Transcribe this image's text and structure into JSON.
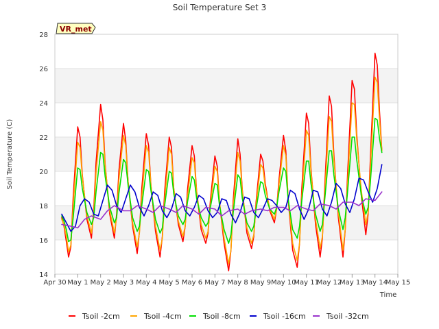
{
  "chart_data": {
    "type": "line",
    "title": "Soil Temperature Set 3",
    "xlabel": "Time",
    "ylabel": "Soil Temperature (C)",
    "tag_label": "VR_met",
    "ylim": [
      14,
      28
    ],
    "xlim": [
      0,
      15
    ],
    "y_ticks": [
      14,
      16,
      18,
      20,
      22,
      24,
      26,
      28
    ],
    "x_ticks": [
      0,
      1,
      2,
      3,
      4,
      5,
      6,
      7,
      8,
      9,
      10,
      11,
      12,
      13,
      14,
      15
    ],
    "x_tick_labels": [
      "Apr 30",
      "May 1",
      "May 2",
      "May 3",
      "May 4",
      "May 5",
      "May 6",
      "May 7",
      "May 8",
      "May 9",
      "May 10",
      "May 11",
      "May 12",
      "May 13",
      "May 14",
      "May 15"
    ],
    "background_bands": "alternating light grey",
    "grid": true,
    "legend_position": "bottom",
    "series": [
      {
        "name": "Tsoil -2cm",
        "color": "#ff0000",
        "x": [
          0.3,
          0.4,
          0.5,
          0.6,
          0.7,
          0.8,
          1.0,
          1.1,
          1.2,
          1.4,
          1.6,
          1.7,
          1.8,
          2.0,
          2.1,
          2.2,
          2.4,
          2.6,
          2.7,
          2.8,
          3.0,
          3.1,
          3.2,
          3.4,
          3.6,
          3.7,
          3.8,
          4.0,
          4.1,
          4.2,
          4.4,
          4.6,
          4.7,
          4.8,
          5.0,
          5.1,
          5.2,
          5.4,
          5.6,
          5.7,
          5.8,
          6.0,
          6.1,
          6.2,
          6.4,
          6.6,
          6.7,
          6.8,
          7.0,
          7.1,
          7.2,
          7.4,
          7.6,
          7.7,
          7.8,
          8.0,
          8.1,
          8.2,
          8.4,
          8.6,
          8.7,
          8.8,
          9.0,
          9.1,
          9.2,
          9.4,
          9.6,
          9.7,
          9.8,
          10.0,
          10.1,
          10.2,
          10.4,
          10.6,
          10.7,
          10.8,
          11.0,
          11.1,
          11.2,
          11.4,
          11.6,
          11.7,
          11.8,
          12.0,
          12.1,
          12.2,
          12.4,
          12.6,
          12.7,
          12.8,
          13.0,
          13.1,
          13.2,
          13.4,
          13.6,
          13.7,
          13.8,
          14.0,
          14.1,
          14.2,
          14.3
        ],
        "y": [
          17.3,
          16.8,
          15.9,
          15.0,
          15.6,
          18.5,
          22.6,
          22.0,
          19.8,
          17.2,
          16.1,
          17.8,
          20.5,
          23.9,
          23.0,
          20.4,
          17.5,
          16.1,
          17.5,
          20.0,
          22.8,
          21.8,
          19.4,
          16.8,
          15.2,
          16.5,
          19.0,
          22.2,
          21.5,
          19.2,
          16.5,
          15.0,
          16.2,
          18.8,
          22.0,
          21.4,
          19.0,
          16.9,
          15.9,
          16.8,
          18.9,
          21.5,
          20.9,
          18.8,
          16.6,
          15.8,
          16.4,
          18.3,
          20.9,
          20.3,
          18.2,
          15.8,
          14.2,
          15.4,
          18.3,
          21.9,
          21.0,
          18.9,
          16.4,
          15.5,
          16.2,
          18.2,
          21.0,
          20.6,
          19.3,
          17.7,
          17.0,
          17.8,
          19.5,
          22.1,
          21.2,
          18.4,
          15.4,
          14.4,
          15.8,
          19.0,
          23.4,
          22.8,
          20.2,
          16.9,
          15.0,
          16.1,
          19.0,
          24.4,
          23.8,
          21.0,
          17.3,
          15.0,
          16.6,
          19.8,
          25.3,
          24.8,
          22.2,
          18.6,
          16.3,
          17.5,
          20.8,
          26.9,
          26.2,
          23.5,
          21.2
        ]
      },
      {
        "name": "Tsoil -4cm",
        "color": "#ffa500",
        "x": [
          0.3,
          0.4,
          0.5,
          0.6,
          0.7,
          0.8,
          1.0,
          1.1,
          1.2,
          1.4,
          1.6,
          1.7,
          1.8,
          2.0,
          2.1,
          2.2,
          2.4,
          2.6,
          2.7,
          2.8,
          3.0,
          3.1,
          3.2,
          3.4,
          3.6,
          3.7,
          3.8,
          4.0,
          4.1,
          4.2,
          4.4,
          4.6,
          4.7,
          4.8,
          5.0,
          5.1,
          5.2,
          5.4,
          5.6,
          5.7,
          5.8,
          6.0,
          6.1,
          6.2,
          6.4,
          6.6,
          6.7,
          6.8,
          7.0,
          7.1,
          7.2,
          7.4,
          7.6,
          7.7,
          7.8,
          8.0,
          8.1,
          8.2,
          8.4,
          8.6,
          8.7,
          8.8,
          9.0,
          9.1,
          9.2,
          9.4,
          9.6,
          9.7,
          9.8,
          10.0,
          10.1,
          10.2,
          10.4,
          10.6,
          10.7,
          10.8,
          11.0,
          11.1,
          11.2,
          11.4,
          11.6,
          11.7,
          11.8,
          12.0,
          12.1,
          12.2,
          12.4,
          12.6,
          12.7,
          12.8,
          13.0,
          13.1,
          13.2,
          13.4,
          13.6,
          13.7,
          13.8,
          14.0,
          14.1,
          14.2,
          14.3
        ],
        "y": [
          17.2,
          16.9,
          16.2,
          15.3,
          15.7,
          18.0,
          21.7,
          21.4,
          19.7,
          17.4,
          16.4,
          17.5,
          19.9,
          22.9,
          22.4,
          20.3,
          17.7,
          16.4,
          17.3,
          19.5,
          22.1,
          21.5,
          19.4,
          17.0,
          15.6,
          16.4,
          18.5,
          21.5,
          21.1,
          19.2,
          16.8,
          15.4,
          16.1,
          18.3,
          21.4,
          21.0,
          19.0,
          17.1,
          16.2,
          16.8,
          18.5,
          20.8,
          20.5,
          18.8,
          16.9,
          16.1,
          16.5,
          18.0,
          20.3,
          20.0,
          18.2,
          16.1,
          14.6,
          15.4,
          17.9,
          21.1,
          20.6,
          18.8,
          16.7,
          15.8,
          16.3,
          18.0,
          20.4,
          20.2,
          19.1,
          17.8,
          17.2,
          17.8,
          19.2,
          21.5,
          20.9,
          18.5,
          15.8,
          14.8,
          15.8,
          18.5,
          22.4,
          22.1,
          20.0,
          17.2,
          15.5,
          16.2,
          18.6,
          23.2,
          22.9,
          20.7,
          17.6,
          15.4,
          16.6,
          19.3,
          24.0,
          23.9,
          21.9,
          18.9,
          16.9,
          17.6,
          20.2,
          25.5,
          25.2,
          23.0,
          21.2
        ]
      },
      {
        "name": "Tsoil -8cm",
        "color": "#00e000",
        "x": [
          0.3,
          0.4,
          0.5,
          0.6,
          0.7,
          0.8,
          1.0,
          1.1,
          1.2,
          1.4,
          1.6,
          1.7,
          1.8,
          2.0,
          2.1,
          2.2,
          2.4,
          2.6,
          2.7,
          2.8,
          3.0,
          3.1,
          3.2,
          3.4,
          3.6,
          3.7,
          3.8,
          4.0,
          4.1,
          4.2,
          4.4,
          4.6,
          4.7,
          4.8,
          5.0,
          5.1,
          5.2,
          5.4,
          5.6,
          5.7,
          5.8,
          6.0,
          6.1,
          6.2,
          6.4,
          6.6,
          6.7,
          6.8,
          7.0,
          7.1,
          7.2,
          7.4,
          7.6,
          7.7,
          7.8,
          8.0,
          8.1,
          8.2,
          8.4,
          8.6,
          8.7,
          8.8,
          9.0,
          9.1,
          9.2,
          9.4,
          9.6,
          9.7,
          9.8,
          10.0,
          10.1,
          10.2,
          10.4,
          10.6,
          10.7,
          10.8,
          11.0,
          11.1,
          11.2,
          11.4,
          11.6,
          11.7,
          11.8,
          12.0,
          12.1,
          12.2,
          12.4,
          12.6,
          12.7,
          12.8,
          13.0,
          13.1,
          13.2,
          13.4,
          13.6,
          13.7,
          13.8,
          14.0,
          14.1,
          14.2,
          14.3
        ],
        "y": [
          17.4,
          17.1,
          16.6,
          15.9,
          16.0,
          17.3,
          20.2,
          20.1,
          19.0,
          17.6,
          16.9,
          17.3,
          18.8,
          21.1,
          21.0,
          19.7,
          17.9,
          17.0,
          17.3,
          18.7,
          20.7,
          20.5,
          19.2,
          17.3,
          16.5,
          16.8,
          18.0,
          20.1,
          20.0,
          18.9,
          17.2,
          16.4,
          16.7,
          18.0,
          20.0,
          19.9,
          18.7,
          17.4,
          16.9,
          17.2,
          18.2,
          19.7,
          19.5,
          18.4,
          17.3,
          16.8,
          17.0,
          17.9,
          19.3,
          19.2,
          18.0,
          16.6,
          15.8,
          16.3,
          17.6,
          19.8,
          19.6,
          18.4,
          17.0,
          16.5,
          16.8,
          17.8,
          19.4,
          19.3,
          18.6,
          17.8,
          17.5,
          17.9,
          18.8,
          20.2,
          20.0,
          18.4,
          16.6,
          16.1,
          16.8,
          18.3,
          20.6,
          20.6,
          19.3,
          17.5,
          16.5,
          16.9,
          18.3,
          21.2,
          21.2,
          19.8,
          17.8,
          16.6,
          17.3,
          18.8,
          22.0,
          22.0,
          20.7,
          18.6,
          17.5,
          17.9,
          19.4,
          23.1,
          23.0,
          21.9,
          21.1
        ]
      },
      {
        "name": "Tsoil -16cm",
        "color": "#0000cd",
        "x": [
          0.3,
          0.5,
          0.7,
          0.9,
          1.1,
          1.3,
          1.5,
          1.7,
          1.9,
          2.1,
          2.3,
          2.5,
          2.7,
          2.9,
          3.1,
          3.3,
          3.5,
          3.7,
          3.9,
          4.1,
          4.3,
          4.5,
          4.7,
          4.9,
          5.1,
          5.3,
          5.5,
          5.7,
          5.9,
          6.1,
          6.3,
          6.5,
          6.7,
          6.9,
          7.1,
          7.3,
          7.5,
          7.7,
          7.9,
          8.1,
          8.3,
          8.5,
          8.7,
          8.9,
          9.1,
          9.3,
          9.5,
          9.7,
          9.9,
          10.1,
          10.3,
          10.5,
          10.7,
          10.9,
          11.1,
          11.3,
          11.5,
          11.7,
          11.9,
          12.1,
          12.3,
          12.5,
          12.7,
          12.9,
          13.1,
          13.3,
          13.5,
          13.7,
          13.9,
          14.1,
          14.3
        ],
        "y": [
          17.5,
          17.0,
          16.5,
          16.8,
          18.0,
          18.4,
          18.2,
          17.5,
          17.4,
          18.3,
          19.2,
          18.9,
          18.0,
          17.6,
          18.4,
          19.2,
          18.8,
          17.9,
          17.4,
          18.0,
          18.8,
          18.6,
          17.7,
          17.3,
          17.8,
          18.7,
          18.5,
          17.7,
          17.4,
          17.9,
          18.6,
          18.4,
          17.7,
          17.3,
          17.6,
          18.4,
          18.3,
          17.5,
          17.0,
          17.6,
          18.5,
          18.4,
          17.6,
          17.3,
          17.8,
          18.4,
          18.3,
          18.0,
          17.6,
          17.9,
          18.9,
          18.7,
          17.8,
          17.2,
          17.8,
          18.9,
          18.8,
          17.8,
          17.4,
          18.2,
          19.3,
          19.0,
          18.1,
          17.6,
          18.4,
          19.6,
          19.5,
          18.8,
          18.2,
          19.0,
          20.4
        ]
      },
      {
        "name": "Tsoil -32cm",
        "color": "#9932cc",
        "x": [
          0.3,
          0.7,
          1.0,
          1.3,
          1.6,
          2.0,
          2.3,
          2.6,
          3.0,
          3.3,
          3.6,
          4.0,
          4.3,
          4.6,
          5.0,
          5.3,
          5.6,
          6.0,
          6.3,
          6.6,
          7.0,
          7.3,
          7.6,
          8.0,
          8.3,
          8.6,
          9.0,
          9.3,
          9.6,
          10.0,
          10.3,
          10.6,
          11.0,
          11.3,
          11.6,
          12.0,
          12.3,
          12.6,
          13.0,
          13.3,
          13.6,
          14.0,
          14.3
        ],
        "y": [
          16.9,
          16.8,
          16.7,
          17.2,
          17.4,
          17.2,
          17.7,
          18.0,
          17.7,
          17.7,
          18.0,
          17.8,
          17.6,
          18.0,
          17.8,
          17.6,
          18.0,
          17.8,
          17.5,
          17.9,
          17.8,
          17.4,
          17.7,
          17.8,
          17.5,
          17.7,
          17.8,
          17.7,
          17.9,
          17.9,
          17.7,
          18.0,
          17.8,
          17.7,
          18.1,
          18.0,
          17.8,
          18.2,
          18.2,
          18.0,
          18.4,
          18.3,
          18.8
        ]
      }
    ]
  }
}
